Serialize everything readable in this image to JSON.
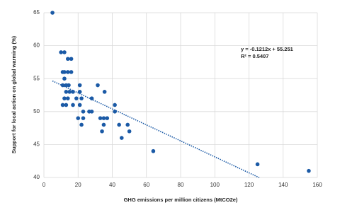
{
  "chart_data": {
    "type": "scatter",
    "x_label": "GHG emissions per million citizens (MtCO2e)",
    "y_label": "Support for local action on global warming (%)",
    "series": [
      {
        "color": "#1b5aa6",
        "x": [
          5,
          10,
          12,
          14,
          16,
          11,
          12,
          14,
          16,
          12,
          13,
          14.5,
          11,
          13,
          15,
          17,
          12,
          14,
          11,
          13,
          17,
          19,
          21,
          21,
          22,
          21,
          23,
          20,
          23,
          22,
          26.5,
          28,
          28,
          31.5,
          35.5,
          33,
          35,
          37,
          34,
          35,
          41.5,
          41.5,
          44,
          45.5,
          49,
          50,
          64,
          125,
          155
        ],
        "values": [
          65,
          59,
          59,
          58,
          58,
          56,
          56,
          56,
          56,
          55,
          54,
          54,
          54,
          53,
          53,
          53,
          52,
          52,
          51,
          51,
          51,
          52,
          54,
          53,
          52,
          51,
          50,
          49,
          49,
          48,
          50,
          50,
          52,
          54,
          53,
          49,
          49,
          49,
          47,
          48,
          51,
          50,
          48,
          46,
          48,
          47,
          44,
          42,
          41
        ]
      }
    ],
    "trendline": {
      "equation": "y = -0.1212x + 55.251",
      "r2": "R² = 0.5407",
      "slope": -0.1212,
      "intercept": 55.251,
      "x_range": [
        5,
        126
      ],
      "color": "#1b5aa6"
    },
    "xlim": [
      0,
      160
    ],
    "xticks": [
      0,
      20,
      40,
      60,
      80,
      100,
      120,
      140,
      160
    ],
    "ylim": [
      40,
      65
    ],
    "yticks": [
      40,
      45,
      50,
      55,
      60,
      65
    ],
    "grid": true
  }
}
